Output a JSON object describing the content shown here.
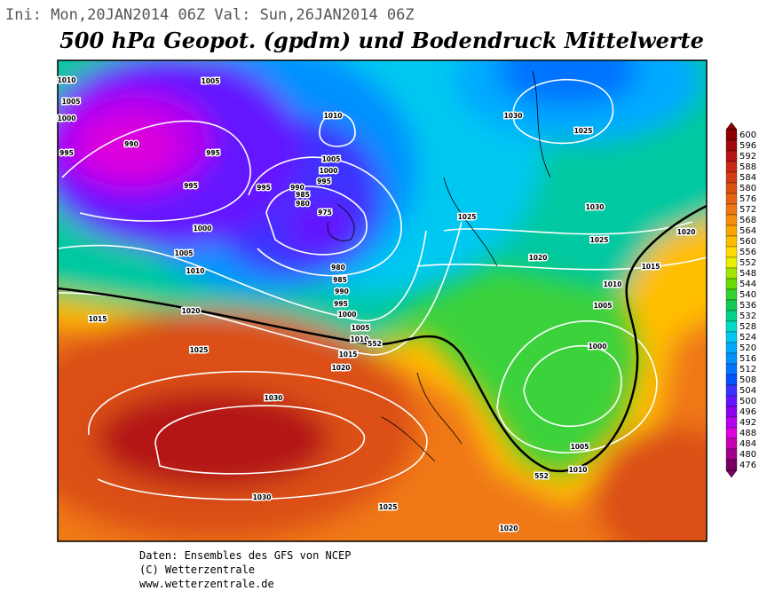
{
  "header": {
    "run_info": "Ini: Mon,20JAN2014 06Z Val: Sun,26JAN2014 06Z",
    "title": "500 hPa Geopot. (gpdm) und Bodendruck Mittelwerte"
  },
  "legend": {
    "values": [
      600,
      596,
      592,
      588,
      584,
      580,
      576,
      572,
      568,
      564,
      560,
      556,
      552,
      548,
      544,
      540,
      536,
      532,
      528,
      524,
      520,
      516,
      512,
      508,
      504,
      500,
      496,
      492,
      488,
      484,
      480,
      476
    ],
    "colors": [
      "#8c0000",
      "#a00a0a",
      "#b41414",
      "#c82814",
      "#d23c14",
      "#dc5014",
      "#e66414",
      "#f07814",
      "#f58c0a",
      "#faa500",
      "#ffbe00",
      "#ffdc00",
      "#e6f000",
      "#a0e600",
      "#64dc00",
      "#32d232",
      "#14c850",
      "#00d28c",
      "#00dcc8",
      "#00c8f0",
      "#00aaff",
      "#0091ff",
      "#0073ff",
      "#0050ff",
      "#3c32ff",
      "#6414ff",
      "#8c00f0",
      "#b400f0",
      "#dc00dc",
      "#c800b4",
      "#a0008c",
      "#780064"
    ]
  },
  "isobar_labels": [
    "1010",
    "1005",
    "1005",
    "1000",
    "990",
    "995",
    "995",
    "995",
    "995",
    "990",
    "985",
    "980",
    "975",
    "1010",
    "1005",
    "1000",
    "995",
    "1030",
    "1025",
    "1000",
    "1005",
    "1010",
    "1020",
    "1015",
    "1025",
    "1030",
    "1030",
    "1025",
    "1020",
    "1010",
    "1005",
    "1000",
    "1005",
    "1010",
    "1015",
    "1020",
    "1025",
    "1030",
    "1025",
    "1020",
    "980",
    "985",
    "990",
    "995",
    "1000",
    "1005",
    "1010",
    "552",
    "1015",
    "1020",
    "552"
  ],
  "footer": {
    "line1": "Daten: Ensembles des GFS von NCEP",
    "line2": "(C) Wetterzentrale",
    "line3": "www.wetterzentrale.de"
  }
}
